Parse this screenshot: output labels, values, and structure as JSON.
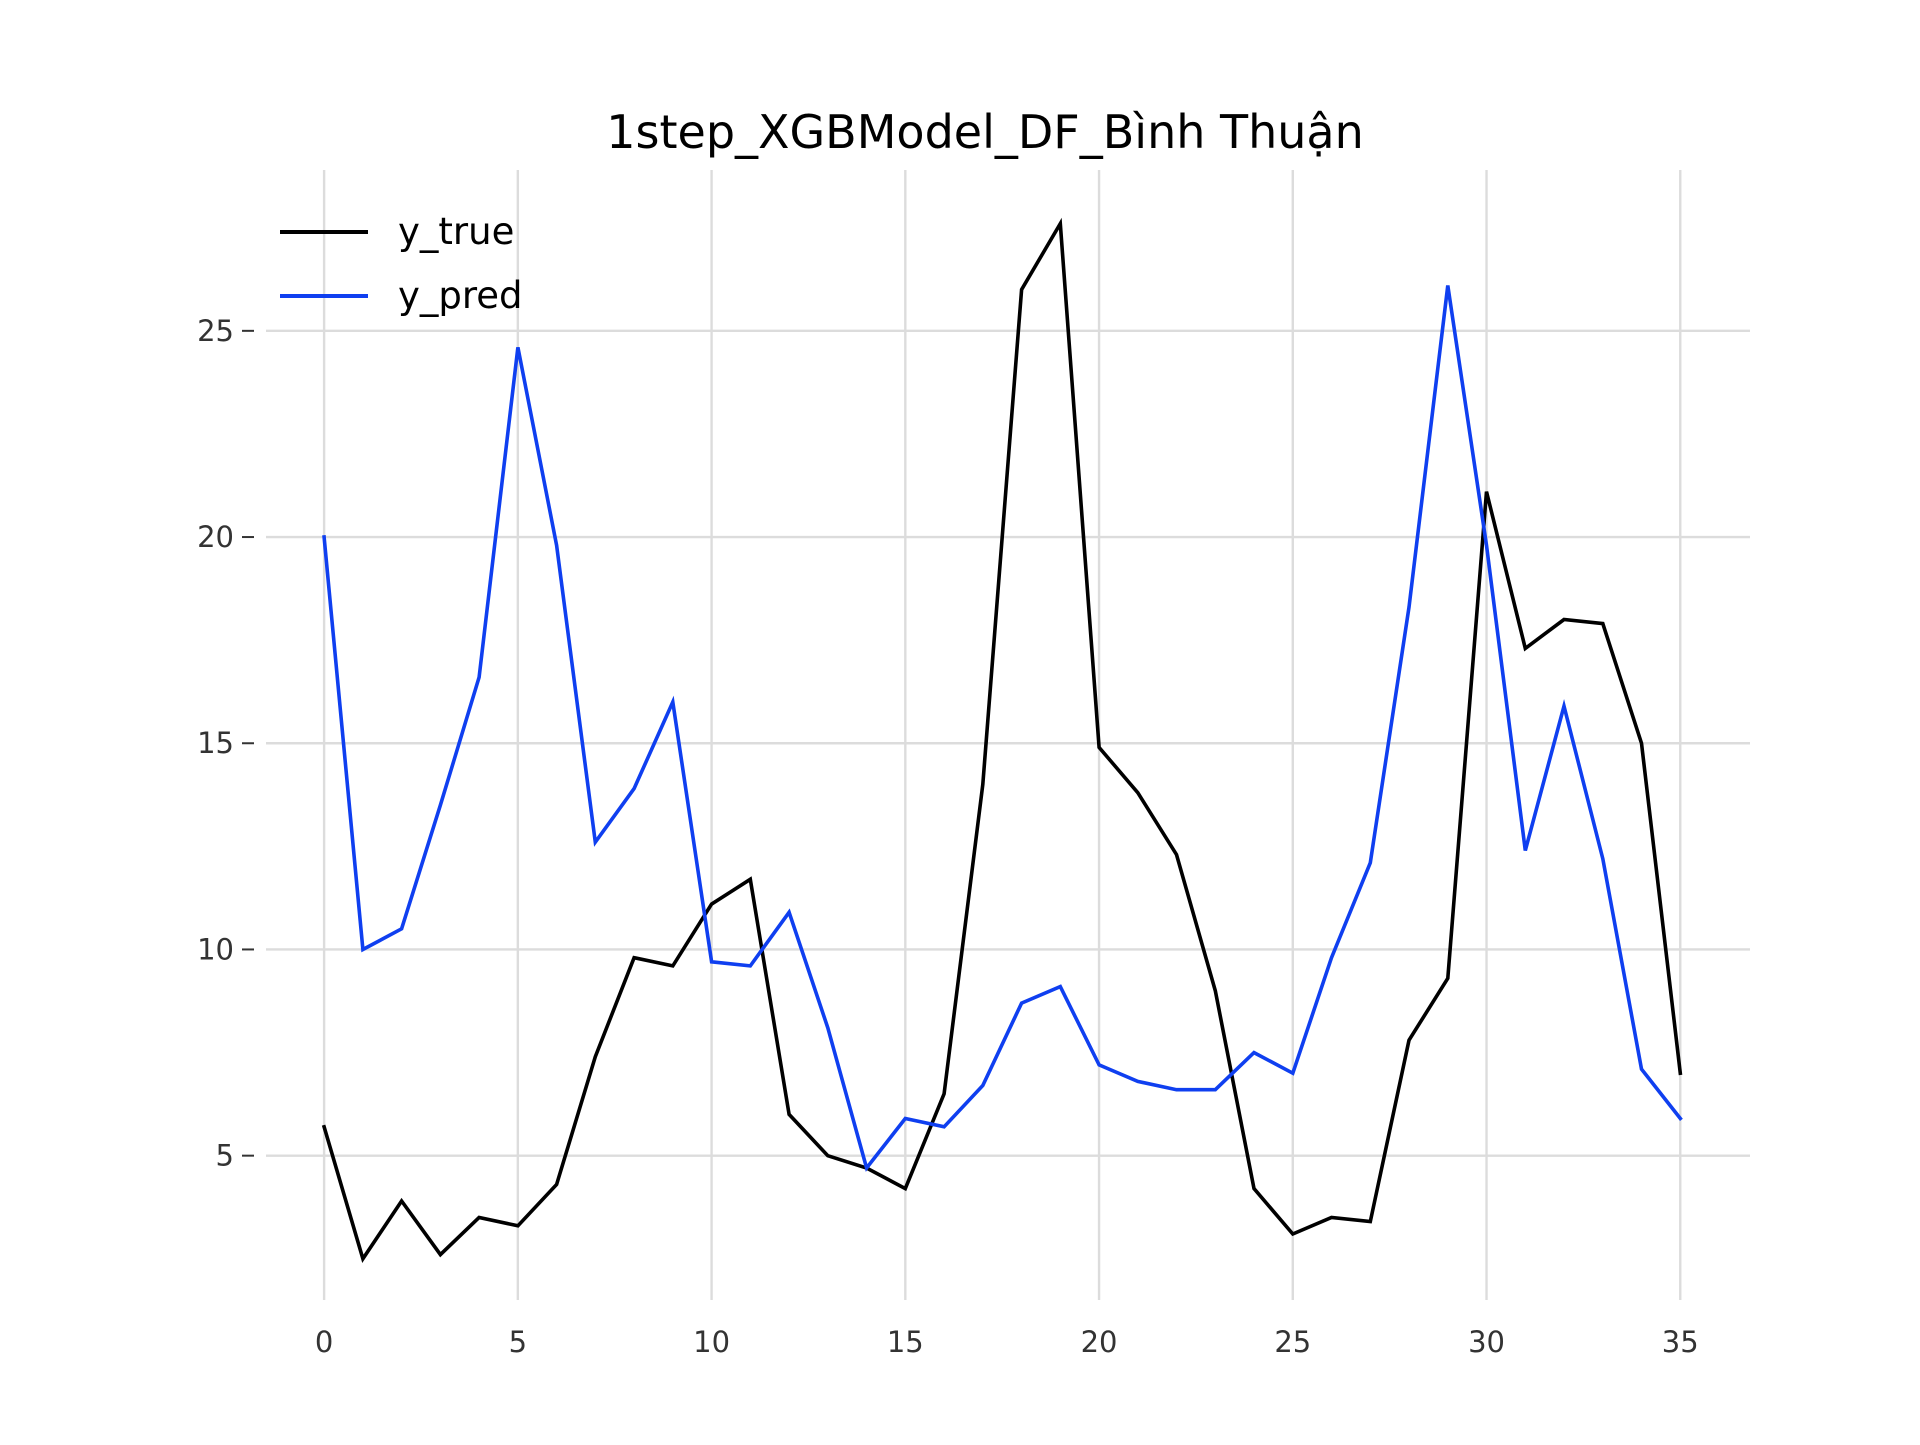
{
  "chart_data": {
    "type": "line",
    "title": "1step_XGBModel_DF_Bình Thuận",
    "xlabel": "",
    "ylabel": "",
    "xlim": [
      -1.5,
      36.8
    ],
    "ylim": [
      1.5,
      28.9
    ],
    "x_ticks": [
      0,
      5,
      10,
      15,
      20,
      25,
      30,
      35
    ],
    "y_ticks": [
      5,
      10,
      15,
      20,
      25
    ],
    "grid": true,
    "legend_position": "upper-left",
    "x": [
      0,
      1,
      2,
      3,
      4,
      5,
      6,
      7,
      8,
      9,
      10,
      11,
      12,
      13,
      14,
      15,
      16,
      17,
      18,
      19,
      20,
      21,
      22,
      23,
      24,
      25,
      26,
      27,
      28,
      29,
      30,
      31,
      32,
      33,
      34,
      35
    ],
    "series": [
      {
        "name": "y_true",
        "color": "#000000",
        "values": [
          5.7,
          2.5,
          3.9,
          2.6,
          3.5,
          3.3,
          4.3,
          7.4,
          9.8,
          9.6,
          11.1,
          11.7,
          6.0,
          5.0,
          4.7,
          4.2,
          6.5,
          14.0,
          26.0,
          27.6,
          14.9,
          13.8,
          12.3,
          9.0,
          4.2,
          3.1,
          3.5,
          3.4,
          7.8,
          9.3,
          21.1,
          17.3,
          18.0,
          17.9,
          15.0,
          7.0
        ]
      },
      {
        "name": "y_pred",
        "color": "#0f3ff0",
        "values": [
          20.0,
          10.0,
          10.5,
          13.5,
          16.6,
          24.6,
          19.8,
          12.6,
          13.9,
          16.0,
          9.7,
          9.6,
          10.9,
          8.1,
          4.7,
          5.9,
          5.7,
          6.7,
          8.7,
          9.1,
          7.2,
          6.8,
          6.6,
          6.6,
          7.5,
          7.0,
          9.8,
          12.1,
          18.3,
          26.1,
          19.8,
          12.4,
          15.9,
          12.2,
          7.1,
          5.9
        ]
      }
    ]
  }
}
